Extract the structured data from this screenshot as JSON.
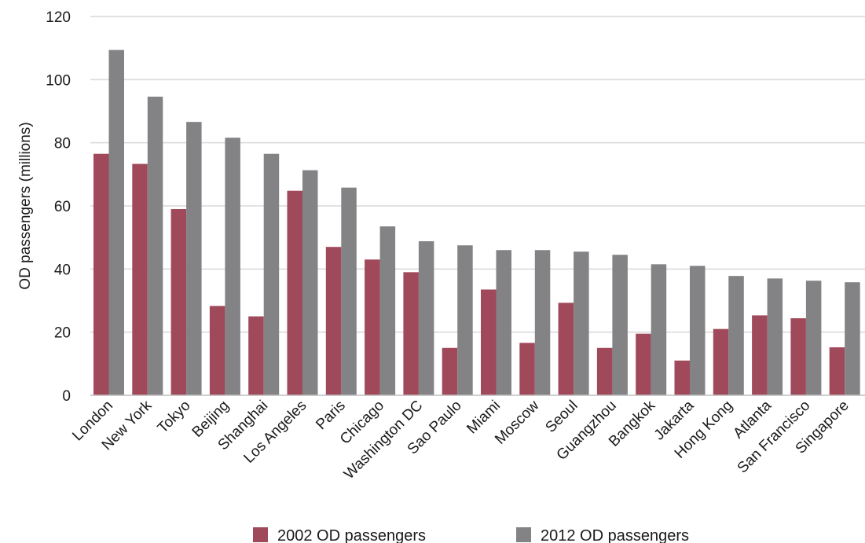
{
  "chart_data": {
    "type": "bar",
    "title": "",
    "xlabel": "",
    "ylabel": "OD passengers (millions)",
    "ylim": [
      0,
      120
    ],
    "yticks": [
      0,
      20,
      40,
      60,
      80,
      100,
      120
    ],
    "grid": true,
    "legend_position": "bottom",
    "categories": [
      "London",
      "New York",
      "Tokyo",
      "Beijing",
      "Shanghai",
      "Los Angeles",
      "Paris",
      "Chicago",
      "Washington DC",
      "Sao Paulo",
      "Miami",
      "Moscow",
      "Seoul",
      "Guangzhou",
      "Bangkok",
      "Jakarta",
      "Hong Kong",
      "Atlanta",
      "San Francisco",
      "Singapore"
    ],
    "series": [
      {
        "name": "2002 OD passengers",
        "color": "#a0495a",
        "values": [
          76.5,
          73.3,
          59.0,
          28.3,
          25.0,
          64.8,
          47.0,
          43.0,
          39.0,
          15.0,
          33.5,
          16.6,
          29.3,
          15.0,
          19.5,
          11.0,
          21.0,
          25.3,
          24.4,
          15.2
        ]
      },
      {
        "name": "2012 OD passengers",
        "color": "#838386",
        "values": [
          109.4,
          94.6,
          86.6,
          81.6,
          76.5,
          71.3,
          65.8,
          53.5,
          48.8,
          47.5,
          46.0,
          46.0,
          45.5,
          44.5,
          41.5,
          41.0,
          37.8,
          37.0,
          36.3,
          35.8
        ]
      }
    ]
  }
}
